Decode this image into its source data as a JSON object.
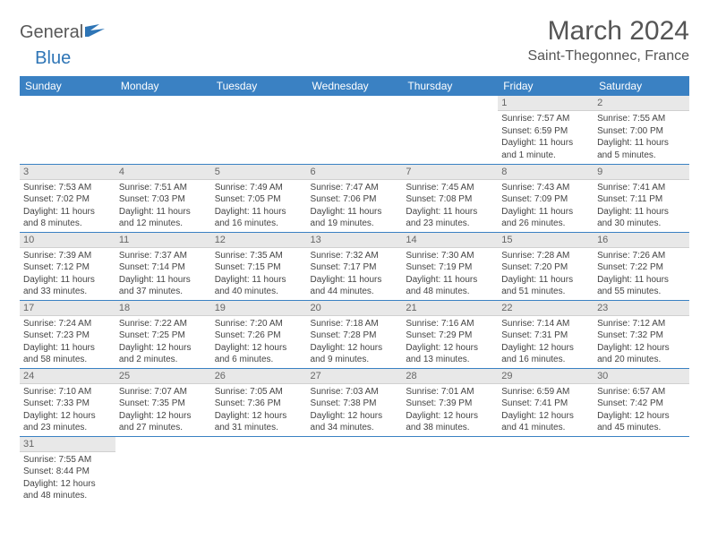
{
  "logo": {
    "general": "General",
    "blue": "Blue"
  },
  "title": "March 2024",
  "location": "Saint-Thegonnec, France",
  "colors": {
    "header_bg": "#3a81c3",
    "header_text": "#ffffff",
    "daynum_bg": "#e8e8e8",
    "border": "#3a81c3",
    "text": "#444444"
  },
  "day_headers": [
    "Sunday",
    "Monday",
    "Tuesday",
    "Wednesday",
    "Thursday",
    "Friday",
    "Saturday"
  ],
  "weeks": [
    [
      {
        "n": "",
        "sr": "",
        "ss": "",
        "dl": ""
      },
      {
        "n": "",
        "sr": "",
        "ss": "",
        "dl": ""
      },
      {
        "n": "",
        "sr": "",
        "ss": "",
        "dl": ""
      },
      {
        "n": "",
        "sr": "",
        "ss": "",
        "dl": ""
      },
      {
        "n": "",
        "sr": "",
        "ss": "",
        "dl": ""
      },
      {
        "n": "1",
        "sr": "Sunrise: 7:57 AM",
        "ss": "Sunset: 6:59 PM",
        "dl": "Daylight: 11 hours and 1 minute."
      },
      {
        "n": "2",
        "sr": "Sunrise: 7:55 AM",
        "ss": "Sunset: 7:00 PM",
        "dl": "Daylight: 11 hours and 5 minutes."
      }
    ],
    [
      {
        "n": "3",
        "sr": "Sunrise: 7:53 AM",
        "ss": "Sunset: 7:02 PM",
        "dl": "Daylight: 11 hours and 8 minutes."
      },
      {
        "n": "4",
        "sr": "Sunrise: 7:51 AM",
        "ss": "Sunset: 7:03 PM",
        "dl": "Daylight: 11 hours and 12 minutes."
      },
      {
        "n": "5",
        "sr": "Sunrise: 7:49 AM",
        "ss": "Sunset: 7:05 PM",
        "dl": "Daylight: 11 hours and 16 minutes."
      },
      {
        "n": "6",
        "sr": "Sunrise: 7:47 AM",
        "ss": "Sunset: 7:06 PM",
        "dl": "Daylight: 11 hours and 19 minutes."
      },
      {
        "n": "7",
        "sr": "Sunrise: 7:45 AM",
        "ss": "Sunset: 7:08 PM",
        "dl": "Daylight: 11 hours and 23 minutes."
      },
      {
        "n": "8",
        "sr": "Sunrise: 7:43 AM",
        "ss": "Sunset: 7:09 PM",
        "dl": "Daylight: 11 hours and 26 minutes."
      },
      {
        "n": "9",
        "sr": "Sunrise: 7:41 AM",
        "ss": "Sunset: 7:11 PM",
        "dl": "Daylight: 11 hours and 30 minutes."
      }
    ],
    [
      {
        "n": "10",
        "sr": "Sunrise: 7:39 AM",
        "ss": "Sunset: 7:12 PM",
        "dl": "Daylight: 11 hours and 33 minutes."
      },
      {
        "n": "11",
        "sr": "Sunrise: 7:37 AM",
        "ss": "Sunset: 7:14 PM",
        "dl": "Daylight: 11 hours and 37 minutes."
      },
      {
        "n": "12",
        "sr": "Sunrise: 7:35 AM",
        "ss": "Sunset: 7:15 PM",
        "dl": "Daylight: 11 hours and 40 minutes."
      },
      {
        "n": "13",
        "sr": "Sunrise: 7:32 AM",
        "ss": "Sunset: 7:17 PM",
        "dl": "Daylight: 11 hours and 44 minutes."
      },
      {
        "n": "14",
        "sr": "Sunrise: 7:30 AM",
        "ss": "Sunset: 7:19 PM",
        "dl": "Daylight: 11 hours and 48 minutes."
      },
      {
        "n": "15",
        "sr": "Sunrise: 7:28 AM",
        "ss": "Sunset: 7:20 PM",
        "dl": "Daylight: 11 hours and 51 minutes."
      },
      {
        "n": "16",
        "sr": "Sunrise: 7:26 AM",
        "ss": "Sunset: 7:22 PM",
        "dl": "Daylight: 11 hours and 55 minutes."
      }
    ],
    [
      {
        "n": "17",
        "sr": "Sunrise: 7:24 AM",
        "ss": "Sunset: 7:23 PM",
        "dl": "Daylight: 11 hours and 58 minutes."
      },
      {
        "n": "18",
        "sr": "Sunrise: 7:22 AM",
        "ss": "Sunset: 7:25 PM",
        "dl": "Daylight: 12 hours and 2 minutes."
      },
      {
        "n": "19",
        "sr": "Sunrise: 7:20 AM",
        "ss": "Sunset: 7:26 PM",
        "dl": "Daylight: 12 hours and 6 minutes."
      },
      {
        "n": "20",
        "sr": "Sunrise: 7:18 AM",
        "ss": "Sunset: 7:28 PM",
        "dl": "Daylight: 12 hours and 9 minutes."
      },
      {
        "n": "21",
        "sr": "Sunrise: 7:16 AM",
        "ss": "Sunset: 7:29 PM",
        "dl": "Daylight: 12 hours and 13 minutes."
      },
      {
        "n": "22",
        "sr": "Sunrise: 7:14 AM",
        "ss": "Sunset: 7:31 PM",
        "dl": "Daylight: 12 hours and 16 minutes."
      },
      {
        "n": "23",
        "sr": "Sunrise: 7:12 AM",
        "ss": "Sunset: 7:32 PM",
        "dl": "Daylight: 12 hours and 20 minutes."
      }
    ],
    [
      {
        "n": "24",
        "sr": "Sunrise: 7:10 AM",
        "ss": "Sunset: 7:33 PM",
        "dl": "Daylight: 12 hours and 23 minutes."
      },
      {
        "n": "25",
        "sr": "Sunrise: 7:07 AM",
        "ss": "Sunset: 7:35 PM",
        "dl": "Daylight: 12 hours and 27 minutes."
      },
      {
        "n": "26",
        "sr": "Sunrise: 7:05 AM",
        "ss": "Sunset: 7:36 PM",
        "dl": "Daylight: 12 hours and 31 minutes."
      },
      {
        "n": "27",
        "sr": "Sunrise: 7:03 AM",
        "ss": "Sunset: 7:38 PM",
        "dl": "Daylight: 12 hours and 34 minutes."
      },
      {
        "n": "28",
        "sr": "Sunrise: 7:01 AM",
        "ss": "Sunset: 7:39 PM",
        "dl": "Daylight: 12 hours and 38 minutes."
      },
      {
        "n": "29",
        "sr": "Sunrise: 6:59 AM",
        "ss": "Sunset: 7:41 PM",
        "dl": "Daylight: 12 hours and 41 minutes."
      },
      {
        "n": "30",
        "sr": "Sunrise: 6:57 AM",
        "ss": "Sunset: 7:42 PM",
        "dl": "Daylight: 12 hours and 45 minutes."
      }
    ],
    [
      {
        "n": "31",
        "sr": "Sunrise: 7:55 AM",
        "ss": "Sunset: 8:44 PM",
        "dl": "Daylight: 12 hours and 48 minutes."
      },
      {
        "n": "",
        "sr": "",
        "ss": "",
        "dl": ""
      },
      {
        "n": "",
        "sr": "",
        "ss": "",
        "dl": ""
      },
      {
        "n": "",
        "sr": "",
        "ss": "",
        "dl": ""
      },
      {
        "n": "",
        "sr": "",
        "ss": "",
        "dl": ""
      },
      {
        "n": "",
        "sr": "",
        "ss": "",
        "dl": ""
      },
      {
        "n": "",
        "sr": "",
        "ss": "",
        "dl": ""
      }
    ]
  ]
}
